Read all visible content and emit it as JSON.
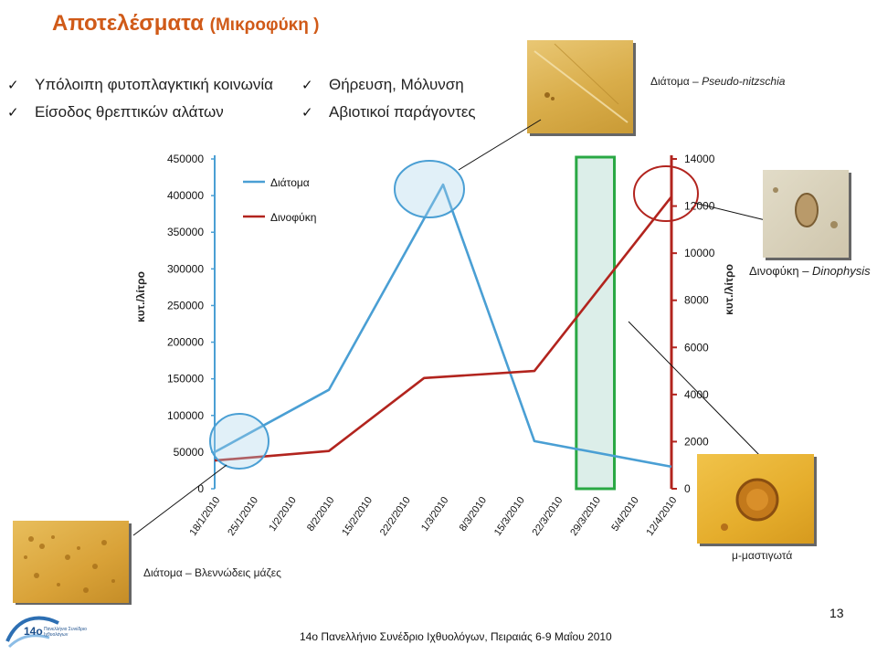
{
  "title": {
    "main": "Αποτελέσματα",
    "sub": "(Μικροφύκη )"
  },
  "bullets": [
    "Υπόλοιπη φυτοπλαγκτική κοινωνία",
    "Είσοδος θρεπτικών αλάτων",
    "Θήρευση, Μόλυνση",
    "Αβιοτικοί παράγοντες"
  ],
  "captions": {
    "top_right_prefix": "Διάτομα",
    "top_right_italic": "Pseudo-nitzschia",
    "right_prefix": "Δινοφύκη",
    "right_italic": "Dinophysis",
    "bottom_left": "Διάτομα – Βλεννώδεις μάζες",
    "bottom_right": "μ-μαστιγωτά"
  },
  "chart_data": {
    "type": "line",
    "categories": [
      "18/1/2010",
      "25/1/2010",
      "1/2/2010",
      "8/2/2010",
      "15/2/2010",
      "22/2/2010",
      "1/3/2010",
      "8/3/2010",
      "15/3/2010",
      "22/3/2010",
      "29/3/2010",
      "5/4/2010",
      "12/4/2010"
    ],
    "series": [
      {
        "name": "Διάτομα",
        "axis": "left",
        "color": "#4a9fd4",
        "points": [
          [
            0,
            50000
          ],
          [
            3,
            135000
          ],
          [
            6,
            415000
          ],
          [
            8.4,
            65000
          ],
          [
            12,
            30000
          ]
        ]
      },
      {
        "name": "Δινοφύκη",
        "axis": "right",
        "color": "#b2241e",
        "points": [
          [
            0,
            1200
          ],
          [
            3,
            1600
          ],
          [
            5.5,
            4700
          ],
          [
            8.4,
            5000
          ],
          [
            12,
            12400
          ]
        ]
      }
    ],
    "left_axis": {
      "label": "κυτ./λίτρο",
      "ylim": [
        0,
        450000
      ],
      "ticks": [
        "0",
        "50000",
        "100000",
        "150000",
        "200000",
        "250000",
        "300000",
        "350000",
        "400000",
        "450000"
      ]
    },
    "right_axis": {
      "label": "κυτ./λίτρο",
      "ylim": [
        0,
        14000
      ],
      "ticks": [
        "0",
        "2000",
        "4000",
        "6000",
        "8000",
        "10000",
        "12000",
        "14000"
      ]
    },
    "legend": "top-left",
    "grid": false,
    "highlight_band": {
      "from": 9.5,
      "to": 10.5,
      "color": "#2aa844"
    }
  },
  "page_number": "13",
  "footer": "14ο Πανελλήνιο Συνέδριο Ιχθυολόγων, Πειραιάς 6-9 Μαΐου 2010",
  "logo_text": "14ο",
  "logo_subtext": "Πανελλήνιο Συνέδριο Ιχθυολόγων"
}
